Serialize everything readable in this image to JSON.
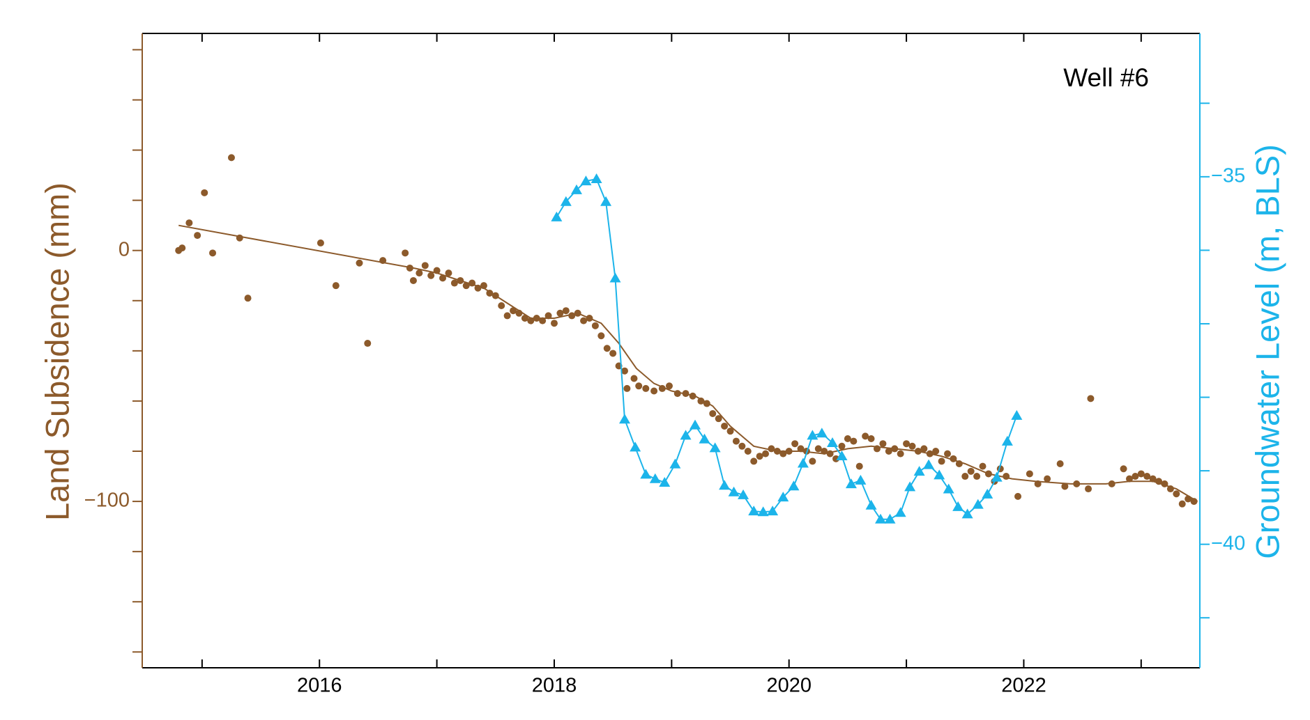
{
  "chart_data": {
    "type": "combo",
    "annotation": "Well #6",
    "ylabel": "Land Subsidence (mm)",
    "y2label": "Groundwater Level (m, BLS)",
    "xlim": [
      2014.49,
      2023.5
    ],
    "xticks": [
      2016,
      2018,
      2020,
      2022
    ],
    "xminorticks": [
      2015,
      2016,
      2017,
      2018,
      2019,
      2020,
      2021,
      2022,
      2023
    ],
    "ylim": [
      -166.3,
      86.5
    ],
    "yticks": [
      {
        "value": 0,
        "label": "0"
      },
      {
        "value": -100,
        "label": "−100"
      }
    ],
    "yminorticks": [
      -160,
      -140,
      -120,
      -100,
      -80,
      -60,
      -40,
      -20,
      0,
      20,
      40,
      60,
      80
    ],
    "y2lim": [
      -41.68,
      -33.05
    ],
    "y2ticks": [
      {
        "value": -35,
        "label": "−35"
      },
      {
        "value": -40,
        "label": "−40"
      }
    ],
    "y2minorticks": [
      -41,
      -40,
      -39,
      -38,
      -37,
      -36,
      -35,
      -34
    ],
    "left_axis_color": "#8c5a2b",
    "right_axis_color": "#1cb4ea",
    "series": [
      {
        "mode": "markers",
        "color": "#8c5a2b",
        "x": [
          2014.8,
          2014.83,
          2014.89,
          2014.96,
          2015.02,
          2015.09,
          2015.25,
          2015.32,
          2015.39,
          2016.01,
          2016.14,
          2016.34,
          2016.41,
          2016.54,
          2016.73,
          2016.77,
          2016.8,
          2016.85,
          2016.9,
          2016.95,
          2017.0,
          2017.05,
          2017.1,
          2017.15,
          2017.2,
          2017.25,
          2017.3,
          2017.35,
          2017.4,
          2017.45,
          2017.5,
          2017.55,
          2017.6,
          2017.65,
          2017.7,
          2017.75,
          2017.8,
          2017.85,
          2017.9,
          2017.95,
          2018.0,
          2018.05,
          2018.1,
          2018.15,
          2018.2,
          2018.25,
          2018.3,
          2018.35,
          2018.4,
          2018.45,
          2018.5,
          2018.55,
          2018.6,
          2018.62,
          2018.68,
          2018.72,
          2018.78,
          2018.85,
          2018.92,
          2018.98,
          2019.05,
          2019.12,
          2019.18,
          2019.25,
          2019.3,
          2019.35,
          2019.4,
          2019.45,
          2019.5,
          2019.55,
          2019.6,
          2019.65,
          2019.7,
          2019.75,
          2019.8,
          2019.85,
          2019.9,
          2019.95,
          2020.0,
          2020.05,
          2020.1,
          2020.15,
          2020.2,
          2020.25,
          2020.3,
          2020.35,
          2020.4,
          2020.45,
          2020.5,
          2020.55,
          2020.6,
          2020.65,
          2020.7,
          2020.75,
          2020.8,
          2020.85,
          2020.9,
          2020.95,
          2021.0,
          2021.05,
          2021.1,
          2021.15,
          2021.2,
          2021.25,
          2021.3,
          2021.35,
          2021.4,
          2021.45,
          2021.5,
          2021.55,
          2021.6,
          2021.65,
          2021.7,
          2021.75,
          2021.8,
          2021.85,
          2021.95,
          2022.05,
          2022.12,
          2022.2,
          2022.31,
          2022.35,
          2022.45,
          2022.55,
          2022.57,
          2022.75,
          2022.85,
          2022.9,
          2022.95,
          2023.0,
          2023.05,
          2023.1,
          2023.15,
          2023.2,
          2023.25,
          2023.3,
          2023.35,
          2023.4,
          2023.45
        ],
        "values": [
          0,
          1,
          11,
          6,
          23,
          -1,
          37,
          5,
          -19,
          3,
          -14,
          -5,
          -37,
          -4,
          -1,
          -7,
          -12,
          -9,
          -6,
          -10,
          -8,
          -11,
          -9,
          -13,
          -12,
          -14,
          -13,
          -15,
          -14,
          -17,
          -18,
          -22,
          -26,
          -24,
          -25,
          -27,
          -28,
          -27,
          -28,
          -26,
          -29,
          -25,
          -24,
          -26,
          -25,
          -28,
          -27,
          -30,
          -34,
          -39,
          -41,
          -46,
          -48,
          -55,
          -51,
          -54,
          -55,
          -56,
          -55,
          -54,
          -57,
          -57,
          -58,
          -60,
          -61,
          -65,
          -67,
          -70,
          -72,
          -76,
          -78,
          -80,
          -84,
          -82,
          -81,
          -79,
          -80,
          -81,
          -80,
          -77,
          -79,
          -80,
          -84,
          -79,
          -80,
          -81,
          -83,
          -78,
          -75,
          -76,
          -86,
          -74,
          -75,
          -79,
          -77,
          -80,
          -79,
          -81,
          -77,
          -78,
          -80,
          -79,
          -81,
          -80,
          -84,
          -81,
          -83,
          -85,
          -90,
          -88,
          -90,
          -86,
          -89,
          -92,
          -87,
          -90,
          -98,
          -89,
          -93,
          -91,
          -85,
          -94,
          -93,
          -95,
          -59,
          -93,
          -87,
          -91,
          -90,
          -89,
          -90,
          -91,
          -92,
          -93,
          -95,
          -97,
          -101,
          -99,
          -100
        ]
      },
      {
        "mode": "line",
        "color": "#8c5a2b",
        "x": [
          2014.8,
          2016.8,
          2017.0,
          2017.2,
          2017.4,
          2017.6,
          2017.8,
          2018.0,
          2018.2,
          2018.4,
          2018.55,
          2018.7,
          2018.85,
          2019.0,
          2019.2,
          2019.35,
          2019.5,
          2019.7,
          2019.9,
          2020.1,
          2020.3,
          2020.5,
          2020.7,
          2020.9,
          2021.1,
          2021.3,
          2021.5,
          2021.7,
          2021.9,
          2022.1,
          2022.4,
          2022.7,
          2022.9,
          2023.1,
          2023.3,
          2023.48
        ],
        "values": [
          10,
          -7,
          -9,
          -12,
          -15,
          -21,
          -27,
          -27,
          -25,
          -29,
          -37,
          -47,
          -53,
          -56,
          -58,
          -62,
          -70,
          -78,
          -80,
          -80,
          -81,
          -79,
          -78,
          -79,
          -80,
          -82,
          -85,
          -89,
          -91,
          -92,
          -93,
          -93,
          -92,
          -92,
          -95,
          -100
        ]
      },
      {
        "mode": "lines+markers",
        "axis": "y2",
        "color": "#1cb4ea",
        "x": [
          2018.02,
          2018.1,
          2018.19,
          2018.27,
          2018.36,
          2018.44,
          2018.52,
          2018.6,
          2018.69,
          2018.78,
          2018.86,
          2018.94,
          2019.03,
          2019.12,
          2019.2,
          2019.28,
          2019.37,
          2019.45,
          2019.53,
          2019.61,
          2019.7,
          2019.78,
          2019.86,
          2019.95,
          2020.04,
          2020.12,
          2020.2,
          2020.28,
          2020.37,
          2020.45,
          2020.53,
          2020.61,
          2020.7,
          2020.78,
          2020.86,
          2020.95,
          2021.03,
          2021.11,
          2021.19,
          2021.28,
          2021.36,
          2021.44,
          2021.52,
          2021.61,
          2021.69,
          2021.77,
          2021.86,
          2021.94
        ],
        "values": [
          -35.55,
          -35.34,
          -35.18,
          -35.06,
          -35.03,
          -35.34,
          -36.38,
          -38.3,
          -38.68,
          -39.05,
          -39.11,
          -39.16,
          -38.91,
          -38.52,
          -38.38,
          -38.57,
          -38.69,
          -39.2,
          -39.29,
          -39.33,
          -39.55,
          -39.56,
          -39.55,
          -39.36,
          -39.21,
          -38.9,
          -38.52,
          -38.49,
          -38.62,
          -38.8,
          -39.18,
          -39.13,
          -39.47,
          -39.66,
          -39.66,
          -39.57,
          -39.22,
          -39.01,
          -38.92,
          -39.06,
          -39.25,
          -39.49,
          -39.59,
          -39.46,
          -39.32,
          -39.09,
          -38.6,
          -38.25
        ]
      }
    ]
  }
}
